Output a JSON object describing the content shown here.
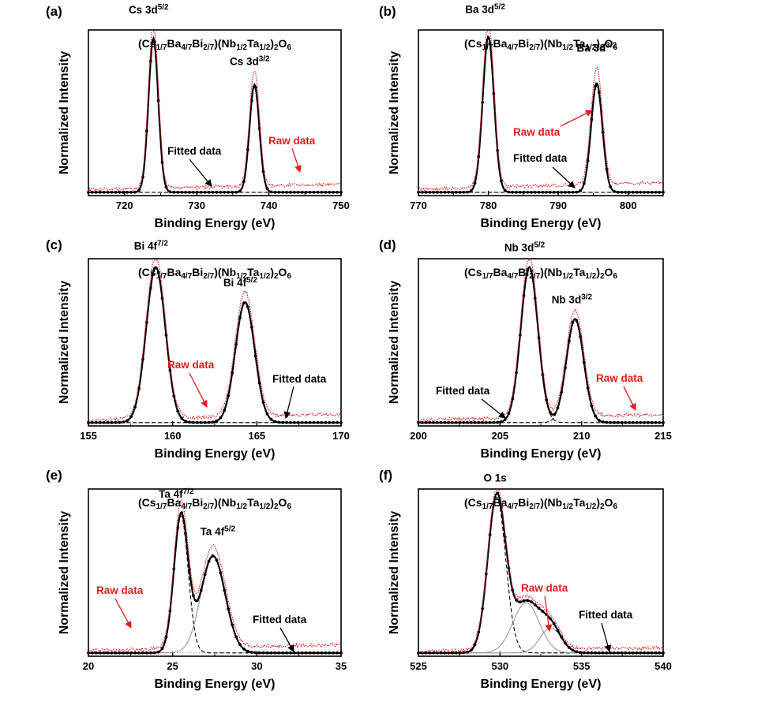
{
  "colors": {
    "raw": "#e8191c",
    "fitted": "#000000",
    "component": "#9a9a9a",
    "background": "#000000"
  },
  "common": {
    "ylabel": "Normalized Intensity",
    "xlabel": "Binding Energy (eV)",
    "title_parts": [
      {
        "t": "(Cs"
      },
      {
        "t": "1/7",
        "sub": true
      },
      {
        "t": "Ba"
      },
      {
        "t": "4/7",
        "sub": true
      },
      {
        "t": "Bi"
      },
      {
        "t": "2/7",
        "sub": true
      },
      {
        "t": ")(Nb"
      },
      {
        "t": "1/2",
        "sub": true
      },
      {
        "t": "Ta"
      },
      {
        "t": "1/2",
        "sub": true
      },
      {
        "t": ")"
      },
      {
        "t": "2",
        "sub": true
      },
      {
        "t": "O"
      },
      {
        "t": "6",
        "sub": true
      }
    ]
  },
  "chart_data": [
    {
      "panel": "(a)",
      "type": "line",
      "xlim": [
        715,
        750
      ],
      "xticks": [
        720,
        730,
        740,
        750
      ],
      "baseline": 0.02,
      "peaks": [
        {
          "label": "Cs 3d",
          "sup": "5/2",
          "center": 724.0,
          "height": 0.93,
          "fwhm": 1.6
        },
        {
          "label": "Cs 3d",
          "sup": "3/2",
          "center": 738.0,
          "height": 0.65,
          "fwhm": 1.6
        }
      ],
      "raw_offset": [
        {
          "from": 715,
          "to": 750,
          "extra": 0.05
        }
      ],
      "raw_scale": 1.08,
      "annotations": [
        {
          "text": "Fitted data",
          "color": "fitted"
        },
        {
          "text": "Raw data",
          "color": "raw"
        }
      ]
    },
    {
      "panel": "(b)",
      "type": "line",
      "xlim": [
        770,
        805
      ],
      "xticks": [
        770,
        780,
        790,
        800
      ],
      "baseline": 0.02,
      "peaks": [
        {
          "label": "Ba 3d",
          "sup": "5/2",
          "center": 780.0,
          "height": 0.94,
          "fwhm": 1.9
        },
        {
          "label": "Ba 3d",
          "sup": "3/2",
          "center": 795.5,
          "height": 0.66,
          "fwhm": 1.9
        }
      ],
      "raw_offset": [
        {
          "from": 770,
          "to": 805,
          "extra": 0.06
        }
      ],
      "raw_scale": 1.07,
      "annotations": [
        {
          "text": "Raw data",
          "color": "raw"
        },
        {
          "text": "Fitted data",
          "color": "fitted"
        }
      ]
    },
    {
      "panel": "(c)",
      "type": "line",
      "xlim": [
        155,
        170
      ],
      "xticks": [
        155,
        160,
        165,
        170
      ],
      "baseline": 0.02,
      "peaks": [
        {
          "label": "Bi 4f",
          "sup": "7/2",
          "center": 159.0,
          "height": 0.93,
          "fwhm": 1.35
        },
        {
          "label": "Bi 4f",
          "sup": "5/2",
          "center": 164.3,
          "height": 0.72,
          "fwhm": 1.35
        }
      ],
      "raw_offset": [
        {
          "from": 155,
          "to": 170,
          "extra": 0.05
        }
      ],
      "raw_scale": 1.04,
      "annotations": [
        {
          "text": "Raw data",
          "color": "raw"
        },
        {
          "text": "Fitted data",
          "color": "fitted"
        }
      ]
    },
    {
      "panel": "(d)",
      "type": "line",
      "xlim": [
        200,
        215
      ],
      "xticks": [
        200,
        205,
        210,
        215
      ],
      "baseline": 0.02,
      "peaks": [
        {
          "label": "Nb 3d",
          "sup": "5/2",
          "center": 206.8,
          "height": 0.93,
          "fwhm": 1.25
        },
        {
          "label": "Nb 3d",
          "sup": "3/2",
          "center": 209.6,
          "height": 0.62,
          "fwhm": 1.25
        }
      ],
      "raw_offset": [
        {
          "from": 200,
          "to": 215,
          "extra": 0.05
        }
      ],
      "raw_scale": 1.03,
      "annotations": [
        {
          "text": "Fitted data",
          "color": "fitted"
        },
        {
          "text": "Raw data",
          "color": "raw"
        }
      ]
    },
    {
      "panel": "(e)",
      "type": "line",
      "xlim": [
        20,
        35
      ],
      "xticks": [
        20,
        25,
        30,
        35
      ],
      "baseline": 0.02,
      "peaks": [
        {
          "label": "Ta 4f",
          "sup": "7/2",
          "center": 25.5,
          "height": 0.82,
          "fwhm": 1.0
        },
        {
          "label": "Ta 4f",
          "sup": "5/2",
          "center": 27.4,
          "height": 0.58,
          "fwhm": 1.7
        }
      ],
      "raw_offset": [
        {
          "from": 20,
          "to": 35,
          "extra": 0.05
        }
      ],
      "raw_scale": 1.05,
      "annotations": [
        {
          "text": "Raw data",
          "color": "raw"
        },
        {
          "text": "Fitted data",
          "color": "fitted"
        }
      ]
    },
    {
      "panel": "(f)",
      "type": "line",
      "xlim": [
        525,
        540
      ],
      "xticks": [
        525,
        530,
        535,
        540
      ],
      "baseline": 0.02,
      "peaks": [
        {
          "label": "O 1s",
          "sup": "",
          "center": 529.8,
          "height": 0.93,
          "fwhm": 1.3
        },
        {
          "label": "",
          "sup": "",
          "center": 531.6,
          "height": 0.3,
          "fwhm": 1.9
        },
        {
          "label": "",
          "sup": "",
          "center": 533.1,
          "height": 0.15,
          "fwhm": 1.5
        }
      ],
      "raw_offset": [
        {
          "from": 525,
          "to": 540,
          "extra": 0.03
        }
      ],
      "raw_scale": 1.02,
      "annotations": [
        {
          "text": "Raw data",
          "color": "raw"
        },
        {
          "text": "Fitted data",
          "color": "fitted"
        }
      ]
    }
  ]
}
